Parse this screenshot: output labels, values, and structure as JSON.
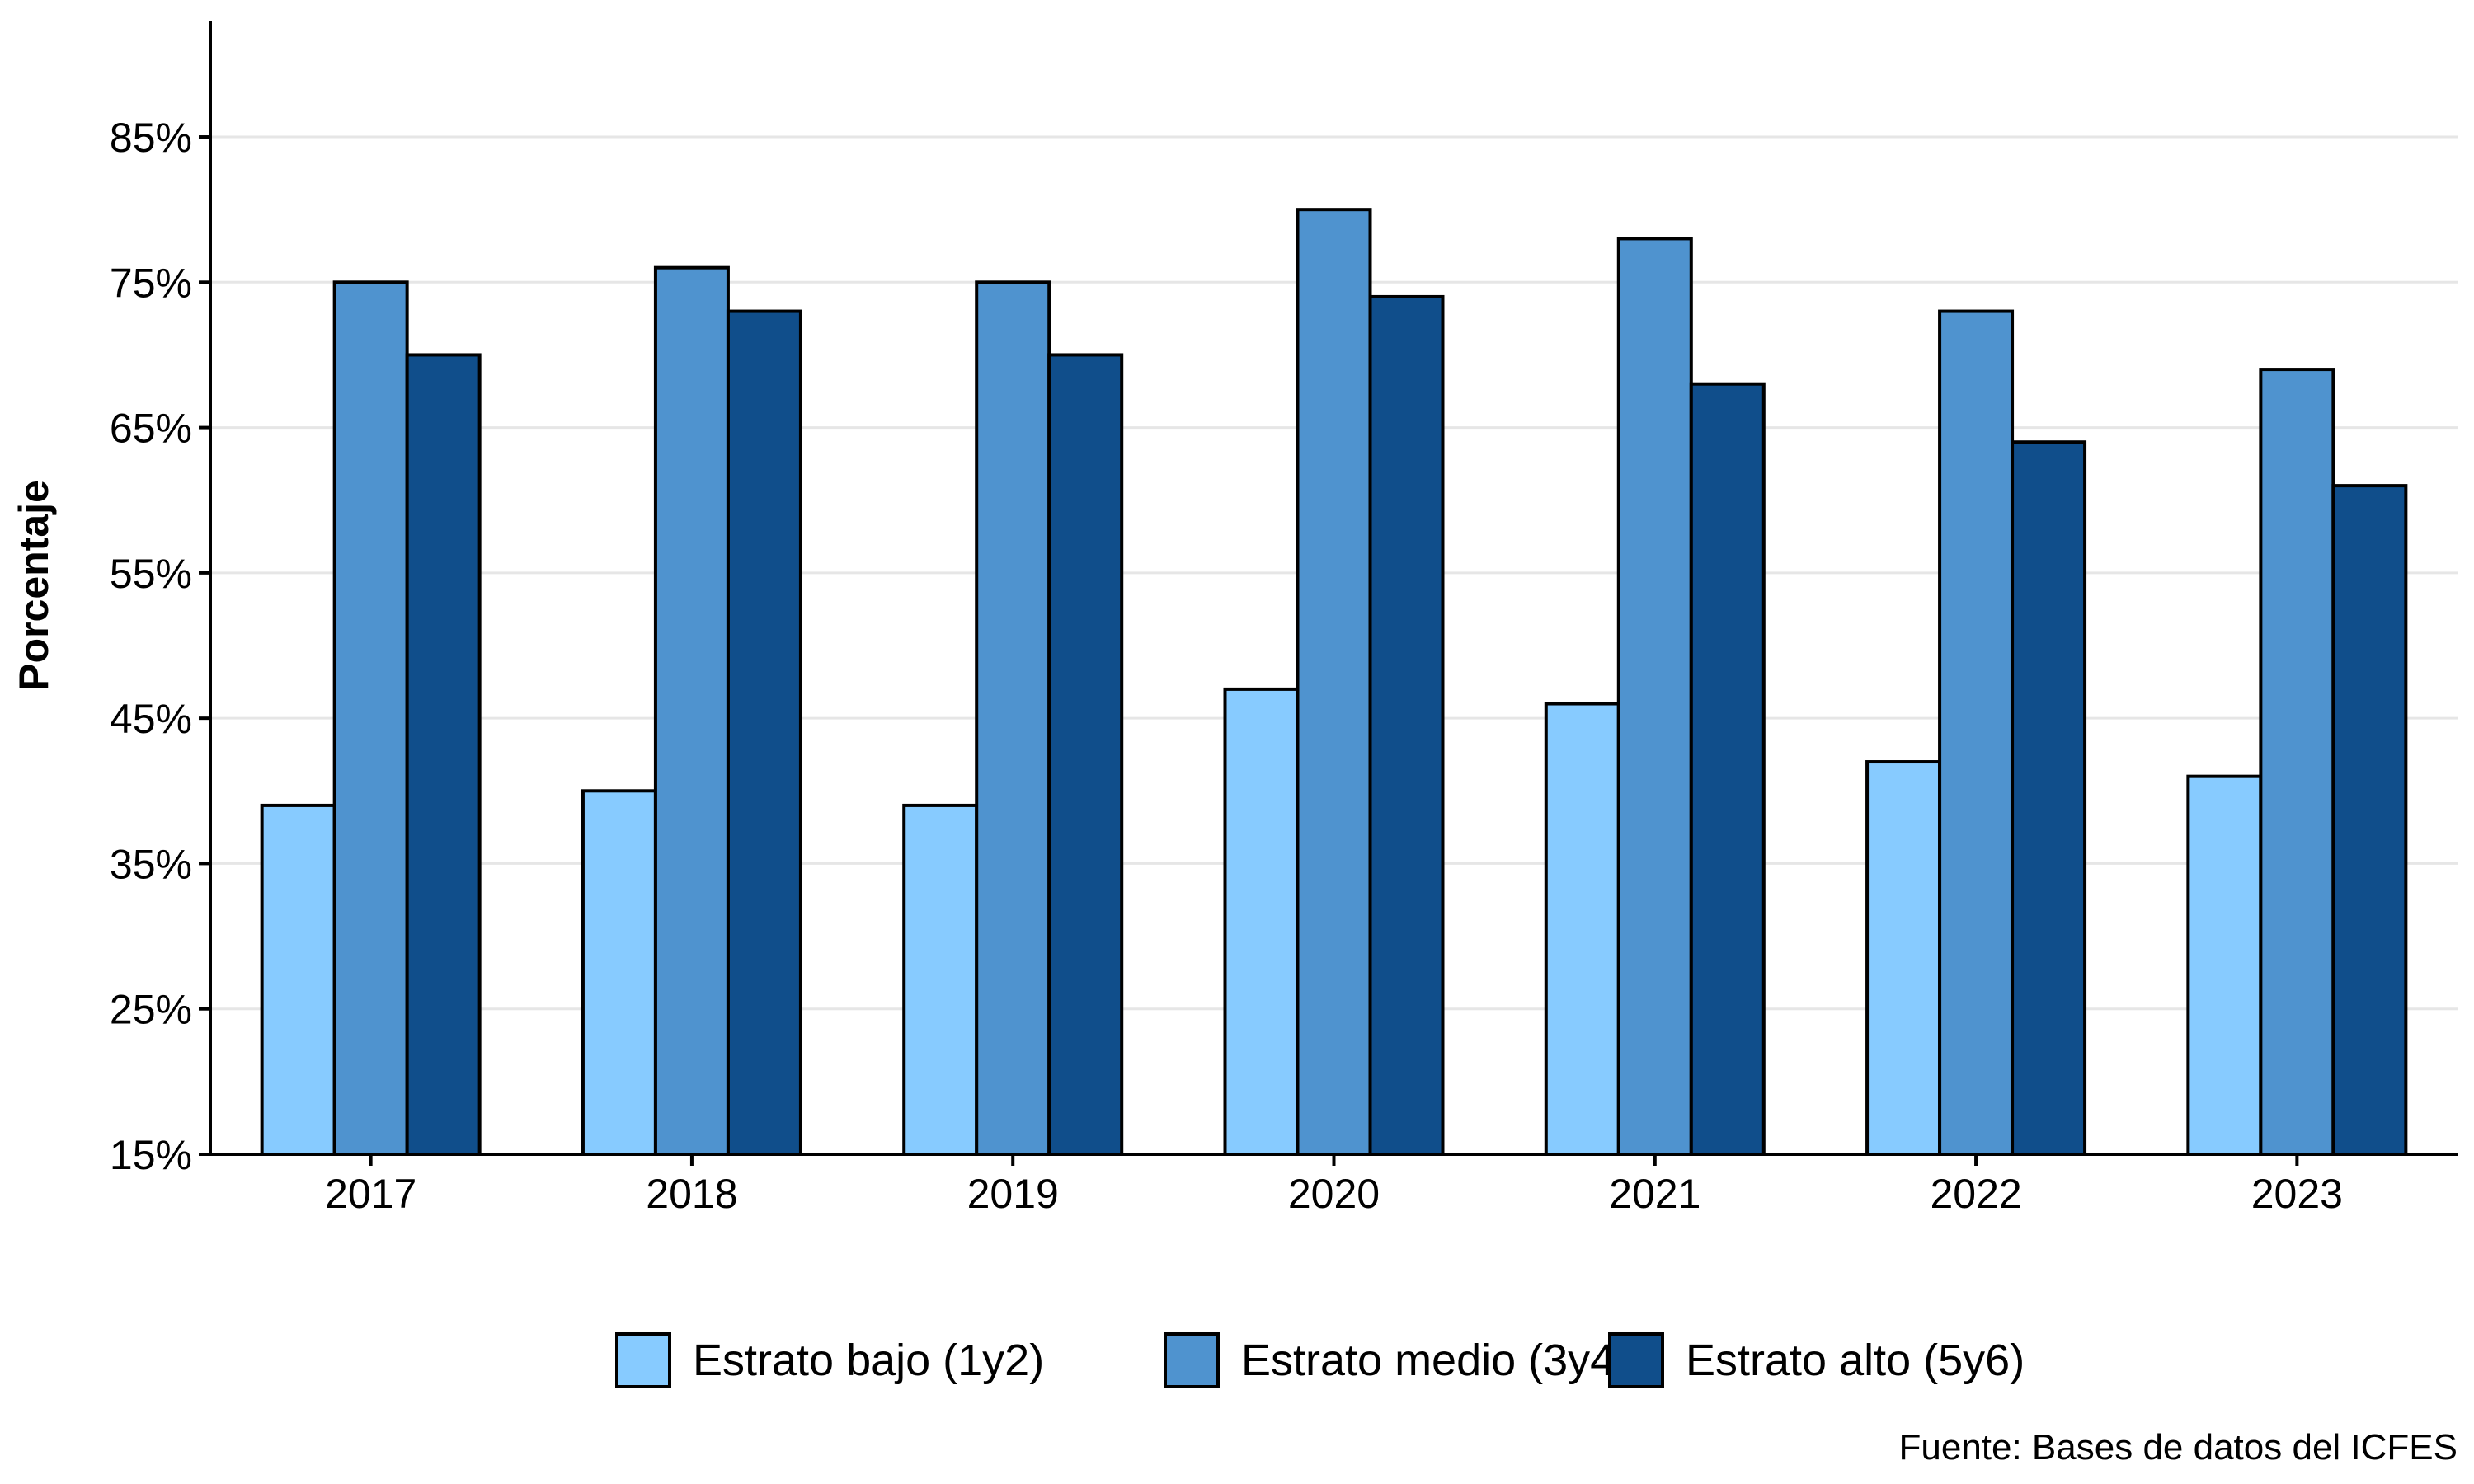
{
  "chart_data": {
    "type": "bar",
    "title": "",
    "xlabel": "",
    "ylabel": "Porcentaje",
    "ylim": [
      15,
      93
    ],
    "yticks": [
      15,
      25,
      35,
      45,
      55,
      65,
      75,
      85
    ],
    "ytick_labels": [
      "15%",
      "25%",
      "35%",
      "45%",
      "55%",
      "65%",
      "75%",
      "85%"
    ],
    "categories": [
      "2017",
      "2018",
      "2019",
      "2020",
      "2021",
      "2022",
      "2023"
    ],
    "series": [
      {
        "name": "Estrato bajo (1y2)",
        "color": "#87cbff",
        "values": [
          39,
          40,
          39,
          47,
          46,
          42,
          41
        ]
      },
      {
        "name": "Estrato medio (3y4)",
        "color": "#4f93cf",
        "values": [
          75,
          76,
          75,
          80,
          78,
          73,
          69
        ]
      },
      {
        "name": "Estrato alto (5y6)",
        "color": "#104e8b",
        "values": [
          70,
          73,
          70,
          74,
          68,
          64,
          61
        ]
      }
    ],
    "grid": "horizontal-major",
    "legend_position": "bottom",
    "source": "Fuente: Bases de datos del ICFES"
  }
}
